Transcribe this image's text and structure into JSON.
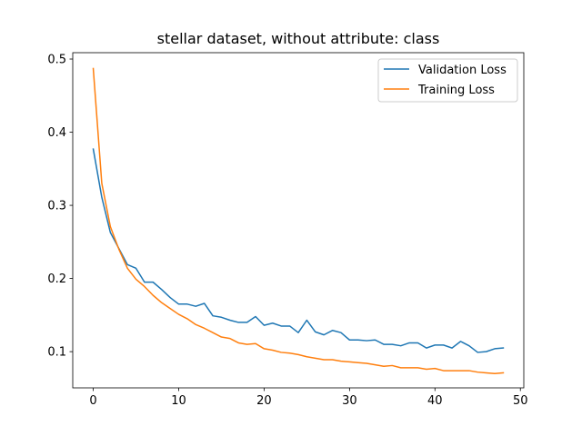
{
  "chart_data": {
    "type": "line",
    "title": "stellar dataset, without attribute: class",
    "xlabel": "",
    "ylabel": "",
    "xlim": [
      -2.4,
      50.4
    ],
    "ylim": [
      0.0505,
      0.5087
    ],
    "x_ticks": [
      0,
      10,
      20,
      30,
      40,
      50
    ],
    "y_ticks": [
      0.1,
      0.2,
      0.3,
      0.4,
      0.5
    ],
    "x_tick_labels": [
      "0",
      "10",
      "20",
      "30",
      "40",
      "50"
    ],
    "y_tick_labels": [
      "0.1",
      "0.2",
      "0.3",
      "0.4",
      "0.5"
    ],
    "grid": false,
    "legend_position": "top-right",
    "x": [
      0,
      1,
      2,
      3,
      4,
      5,
      6,
      7,
      8,
      9,
      10,
      11,
      12,
      13,
      14,
      15,
      16,
      17,
      18,
      19,
      20,
      21,
      22,
      23,
      24,
      25,
      26,
      27,
      28,
      29,
      30,
      31,
      32,
      33,
      34,
      35,
      36,
      37,
      38,
      39,
      40,
      41,
      42,
      43,
      44,
      45,
      46,
      47,
      48
    ],
    "series": [
      {
        "name": "Validation Loss",
        "color": "#1f77b4",
        "values": [
          0.377,
          0.311,
          0.263,
          0.241,
          0.219,
          0.214,
          0.195,
          0.195,
          0.185,
          0.174,
          0.165,
          0.165,
          0.162,
          0.166,
          0.149,
          0.147,
          0.143,
          0.14,
          0.14,
          0.148,
          0.136,
          0.139,
          0.135,
          0.135,
          0.126,
          0.143,
          0.127,
          0.123,
          0.129,
          0.126,
          0.116,
          0.116,
          0.115,
          0.116,
          0.11,
          0.11,
          0.108,
          0.112,
          0.112,
          0.105,
          0.109,
          0.109,
          0.105,
          0.114,
          0.108,
          0.099,
          0.1,
          0.104,
          0.105
        ]
      },
      {
        "name": "Training Loss",
        "color": "#ff7f0e",
        "values": [
          0.487,
          0.33,
          0.271,
          0.24,
          0.214,
          0.199,
          0.189,
          0.177,
          0.167,
          0.159,
          0.151,
          0.145,
          0.137,
          0.132,
          0.126,
          0.12,
          0.118,
          0.112,
          0.11,
          0.111,
          0.104,
          0.102,
          0.099,
          0.098,
          0.096,
          0.093,
          0.091,
          0.089,
          0.089,
          0.087,
          0.086,
          0.085,
          0.084,
          0.082,
          0.08,
          0.081,
          0.078,
          0.078,
          0.078,
          0.076,
          0.077,
          0.074,
          0.074,
          0.074,
          0.074,
          0.072,
          0.071,
          0.07,
          0.071
        ]
      }
    ]
  }
}
